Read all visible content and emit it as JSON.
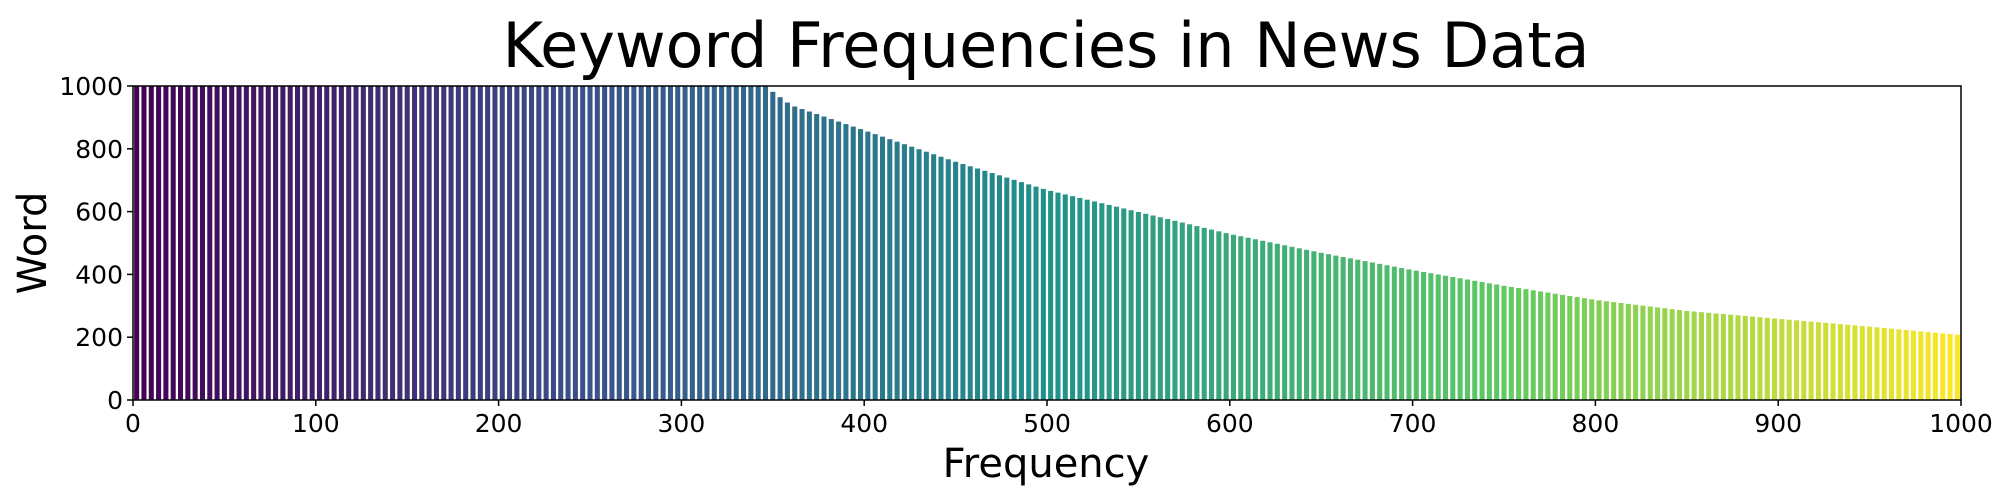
{
  "chart_data": {
    "type": "bar",
    "title": "Keyword Frequencies in News Data",
    "xlabel": "Frequency",
    "ylabel": "Word",
    "xlim": [
      0,
      1000
    ],
    "ylim": [
      0,
      1000
    ],
    "x_ticks": [
      0,
      100,
      200,
      300,
      400,
      500,
      600,
      700,
      800,
      900,
      1000
    ],
    "y_ticks": [
      0,
      200,
      400,
      600,
      800,
      1000
    ],
    "grid": false,
    "colormap": "viridis",
    "bar_edge_color": "#ffffff",
    "bars": {
      "count": 250,
      "x_start": 2,
      "x_step": 4,
      "x_unit_width": 3.2,
      "profile_points": [
        [
          0,
          1000
        ],
        [
          340,
          1000
        ],
        [
          346,
          1000
        ],
        [
          360,
          940
        ],
        [
          400,
          860
        ],
        [
          450,
          760
        ],
        [
          500,
          670
        ],
        [
          550,
          600
        ],
        [
          600,
          530
        ],
        [
          650,
          470
        ],
        [
          700,
          415
        ],
        [
          750,
          365
        ],
        [
          800,
          320
        ],
        [
          850,
          285
        ],
        [
          900,
          260
        ],
        [
          950,
          235
        ],
        [
          1000,
          208
        ]
      ]
    }
  }
}
